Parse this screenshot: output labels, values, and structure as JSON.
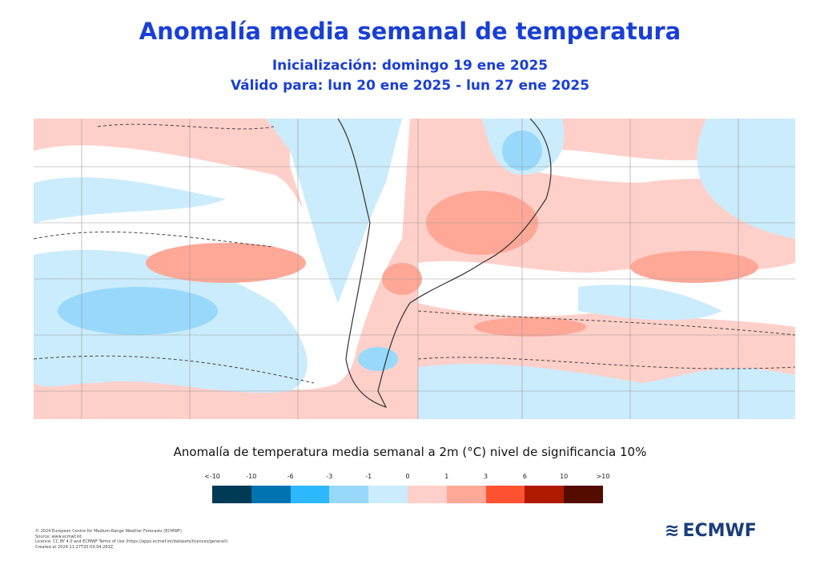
{
  "header": {
    "title": "Anomalía  media semanal de temperatura",
    "initialization": "Inicialización: domingo 19 ene 2025",
    "valid": "Válido para: lun 20 ene 2025 - lun 27 ene 2025"
  },
  "map": {
    "region": "South America and surrounding oceans",
    "colors": {
      "pos_light": "#ffd0c9",
      "pos_mid": "#ffa898",
      "neg_light": "#cbecfc",
      "neg_mid": "#98d9fb",
      "land_line": "#333333"
    }
  },
  "legend": {
    "title": "Anomalía de temperatura media semanal a 2m (°C) nivel de significancia 10%",
    "ticks": [
      "<-10",
      "-10",
      "-6",
      "-3",
      "-1",
      "0",
      "1",
      "3",
      "6",
      "10",
      ">10"
    ],
    "colors": [
      "#003a55",
      "#0073b0",
      "#2db8fd",
      "#98d9fb",
      "#cbecfc",
      "#ffd0c9",
      "#ffa898",
      "#ff5232",
      "#b01a00",
      "#540c00"
    ]
  },
  "footer": {
    "lines": [
      "© 2024 European Centre for Medium-Range Weather Forecasts (ECMWF)",
      "Source: www.ecmwf.int",
      "Licence: CC BY 4.0 and ECMWF Terms of Use (https://apps.ecmwf.int/datasets/licences/general/)",
      "Created at 2024-11-27T20:03:04.263Z"
    ],
    "logo": "ECMWF"
  }
}
